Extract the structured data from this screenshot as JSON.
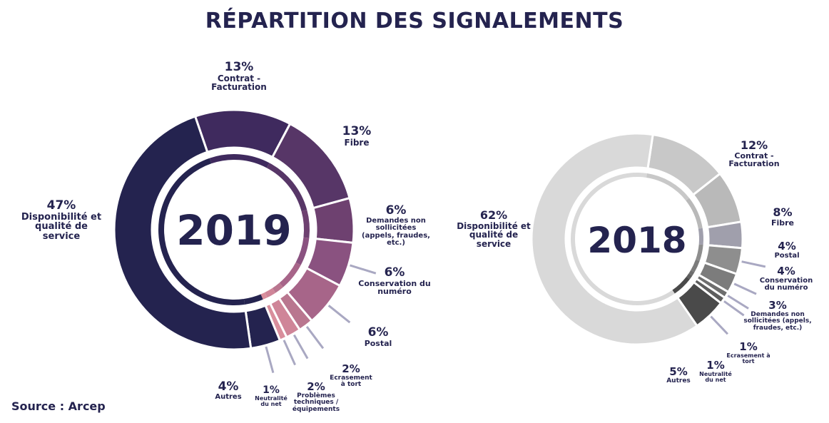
{
  "title": "RÉPARTITION DES SIGNALEMENTS",
  "source": "Source : Arcep",
  "chart_data": [
    {
      "type": "pie",
      "subtype": "donut",
      "center_label": "2019",
      "categories": [
        "Contrat - Facturation",
        "Fibre",
        "Demandes non sollicitées (appels, fraudes, etc.)",
        "Conservation du numéro",
        "Postal",
        "Ecrasement à tort",
        "Problèmes techniques / équipements",
        "Neutralité du net",
        "Autres",
        "Disponibilité et qualité de service"
      ],
      "values": [
        13,
        13,
        6,
        6,
        6,
        2,
        2,
        1,
        4,
        47
      ],
      "value_labels": [
        "13%",
        "13%",
        "6%",
        "6%",
        "6%",
        "2%",
        "2%",
        "1%",
        "4%",
        "47%"
      ],
      "colors": [
        "#3f2a5e",
        "#573667",
        "#6e4170",
        "#8a5280",
        "#a76589",
        "#b9768f",
        "#cf8598",
        "#d98e9c",
        "#24234f",
        "#24234f"
      ],
      "unit": "%"
    },
    {
      "type": "pie",
      "subtype": "donut",
      "center_label": "2018",
      "categories": [
        "Contrat - Facturation",
        "Fibre",
        "Postal",
        "Conservation du numéro",
        "Demandes non sollicitées (appels, fraudes, etc.)",
        "Ecrasement à tort",
        "Neutralité du net",
        "Autres",
        "Disponibilité et qualité de service"
      ],
      "values": [
        12,
        8,
        4,
        4,
        3,
        1,
        1,
        5,
        62
      ],
      "value_labels": [
        "12%",
        "8%",
        "4%",
        "4%",
        "3%",
        "1%",
        "1%",
        "5%",
        "62%"
      ],
      "colors": [
        "#c8c8c8",
        "#b9b9b9",
        "#a09fac",
        "#8e8e8e",
        "#7c7c7c",
        "#6e6e6e",
        "#5e5e5e",
        "#4a4a4a",
        "#d9d9d9"
      ],
      "unit": "%"
    }
  ],
  "labels_2019": [
    {
      "pct": "13%",
      "name": "Contrat - Facturation"
    },
    {
      "pct": "13%",
      "name": "Fibre"
    },
    {
      "pct": "6%",
      "name": "Demandes non sollicitées (appels, fraudes, etc.)"
    },
    {
      "pct": "6%",
      "name": "Conservation du numéro"
    },
    {
      "pct": "6%",
      "name": "Postal"
    },
    {
      "pct": "2%",
      "name": "Ecrasement à tort"
    },
    {
      "pct": "2%",
      "name": "Problèmes techniques / équipements"
    },
    {
      "pct": "1%",
      "name": "Neutralité du net"
    },
    {
      "pct": "4%",
      "name": "Autres"
    },
    {
      "pct": "47%",
      "name": "Disponibilité et qualité de service"
    }
  ],
  "labels_2018": [
    {
      "pct": "12%",
      "name": "Contrat - Facturation"
    },
    {
      "pct": "8%",
      "name": "Fibre"
    },
    {
      "pct": "4%",
      "name": "Postal"
    },
    {
      "pct": "4%",
      "name": "Conservation du numéro"
    },
    {
      "pct": "3%",
      "name": "Demandes non sollicitées (appels, fraudes, etc.)"
    },
    {
      "pct": "1%",
      "name": "Ecrasement à tort"
    },
    {
      "pct": "1%",
      "name": "Neutralité du net"
    },
    {
      "pct": "5%",
      "name": "Autres"
    },
    {
      "pct": "62%",
      "name": "Disponibilité et qualité de service"
    }
  ]
}
